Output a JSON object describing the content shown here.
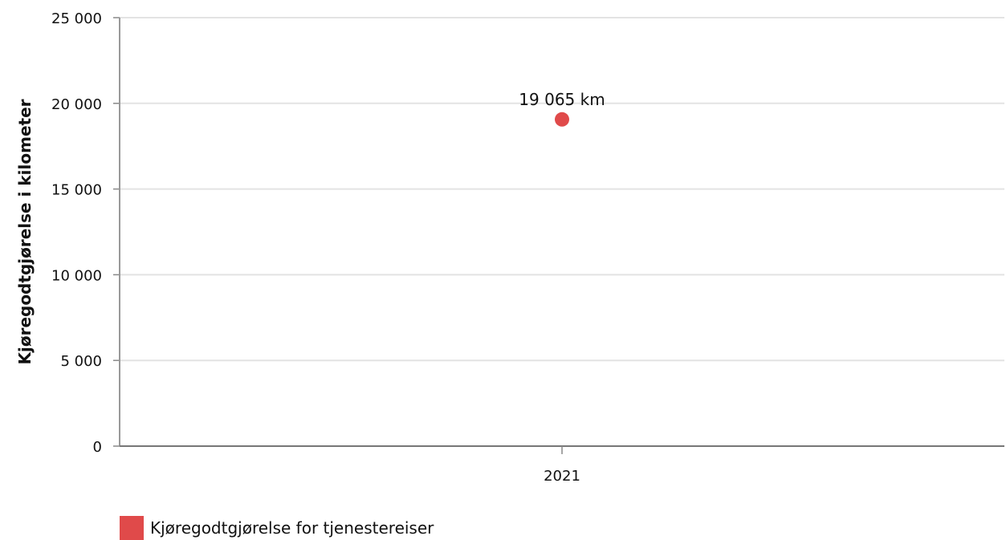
{
  "chart_data": {
    "type": "scatter",
    "categories": [
      "2021"
    ],
    "series": [
      {
        "name": "Kjøregodtgjørelse for tjenestereiser",
        "values": [
          19065
        ],
        "data_labels": [
          "19 065 km"
        ],
        "color": "#e04a4a"
      }
    ],
    "ylabel": "Kjøregodtgjørelse i kilometer",
    "xlabel": "",
    "ylim": [
      0,
      25000
    ],
    "yticks": [
      0,
      5000,
      10000,
      15000,
      20000,
      25000
    ],
    "ytick_labels": [
      "0",
      "5 000",
      "10 000",
      "15 000",
      "20 000",
      "25 000"
    ],
    "grid": true,
    "legend_position": "bottom-left"
  }
}
